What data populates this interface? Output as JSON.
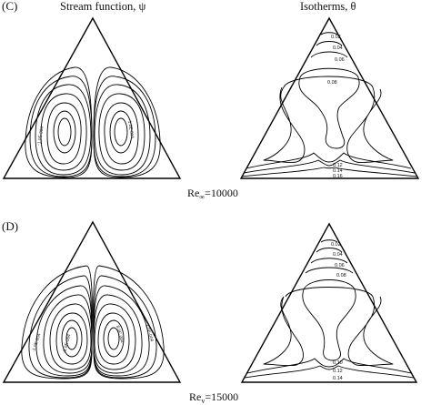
{
  "headings": {
    "stream": "Stream function, ψ",
    "isotherms": "Isotherms, θ"
  },
  "panels": [
    {
      "label": "(C)",
      "re_prefix": "Re",
      "re_sub": "∞",
      "re_value": "=10000",
      "stream_labels": {
        "left": "-1.0E-004",
        "right": "1.0E-004"
      },
      "isotherm_labels": [
        "0.02",
        "0.04",
        "0.06",
        "0.08",
        "0.12",
        "0.14",
        "0.16"
      ]
    },
    {
      "label": "(D)",
      "re_prefix": "Re",
      "re_sub": "v",
      "re_value": "=15000",
      "stream_labels": {
        "left": "-1.0E-004",
        "right": "1.0E-004",
        "inner_left": "-8.0E-004",
        "inner_right": "8.0E-004"
      },
      "isotherm_labels": [
        "0.02",
        "0.04",
        "0.06",
        "0.08",
        "0.10",
        "0.12",
        "0.14"
      ]
    }
  ]
}
